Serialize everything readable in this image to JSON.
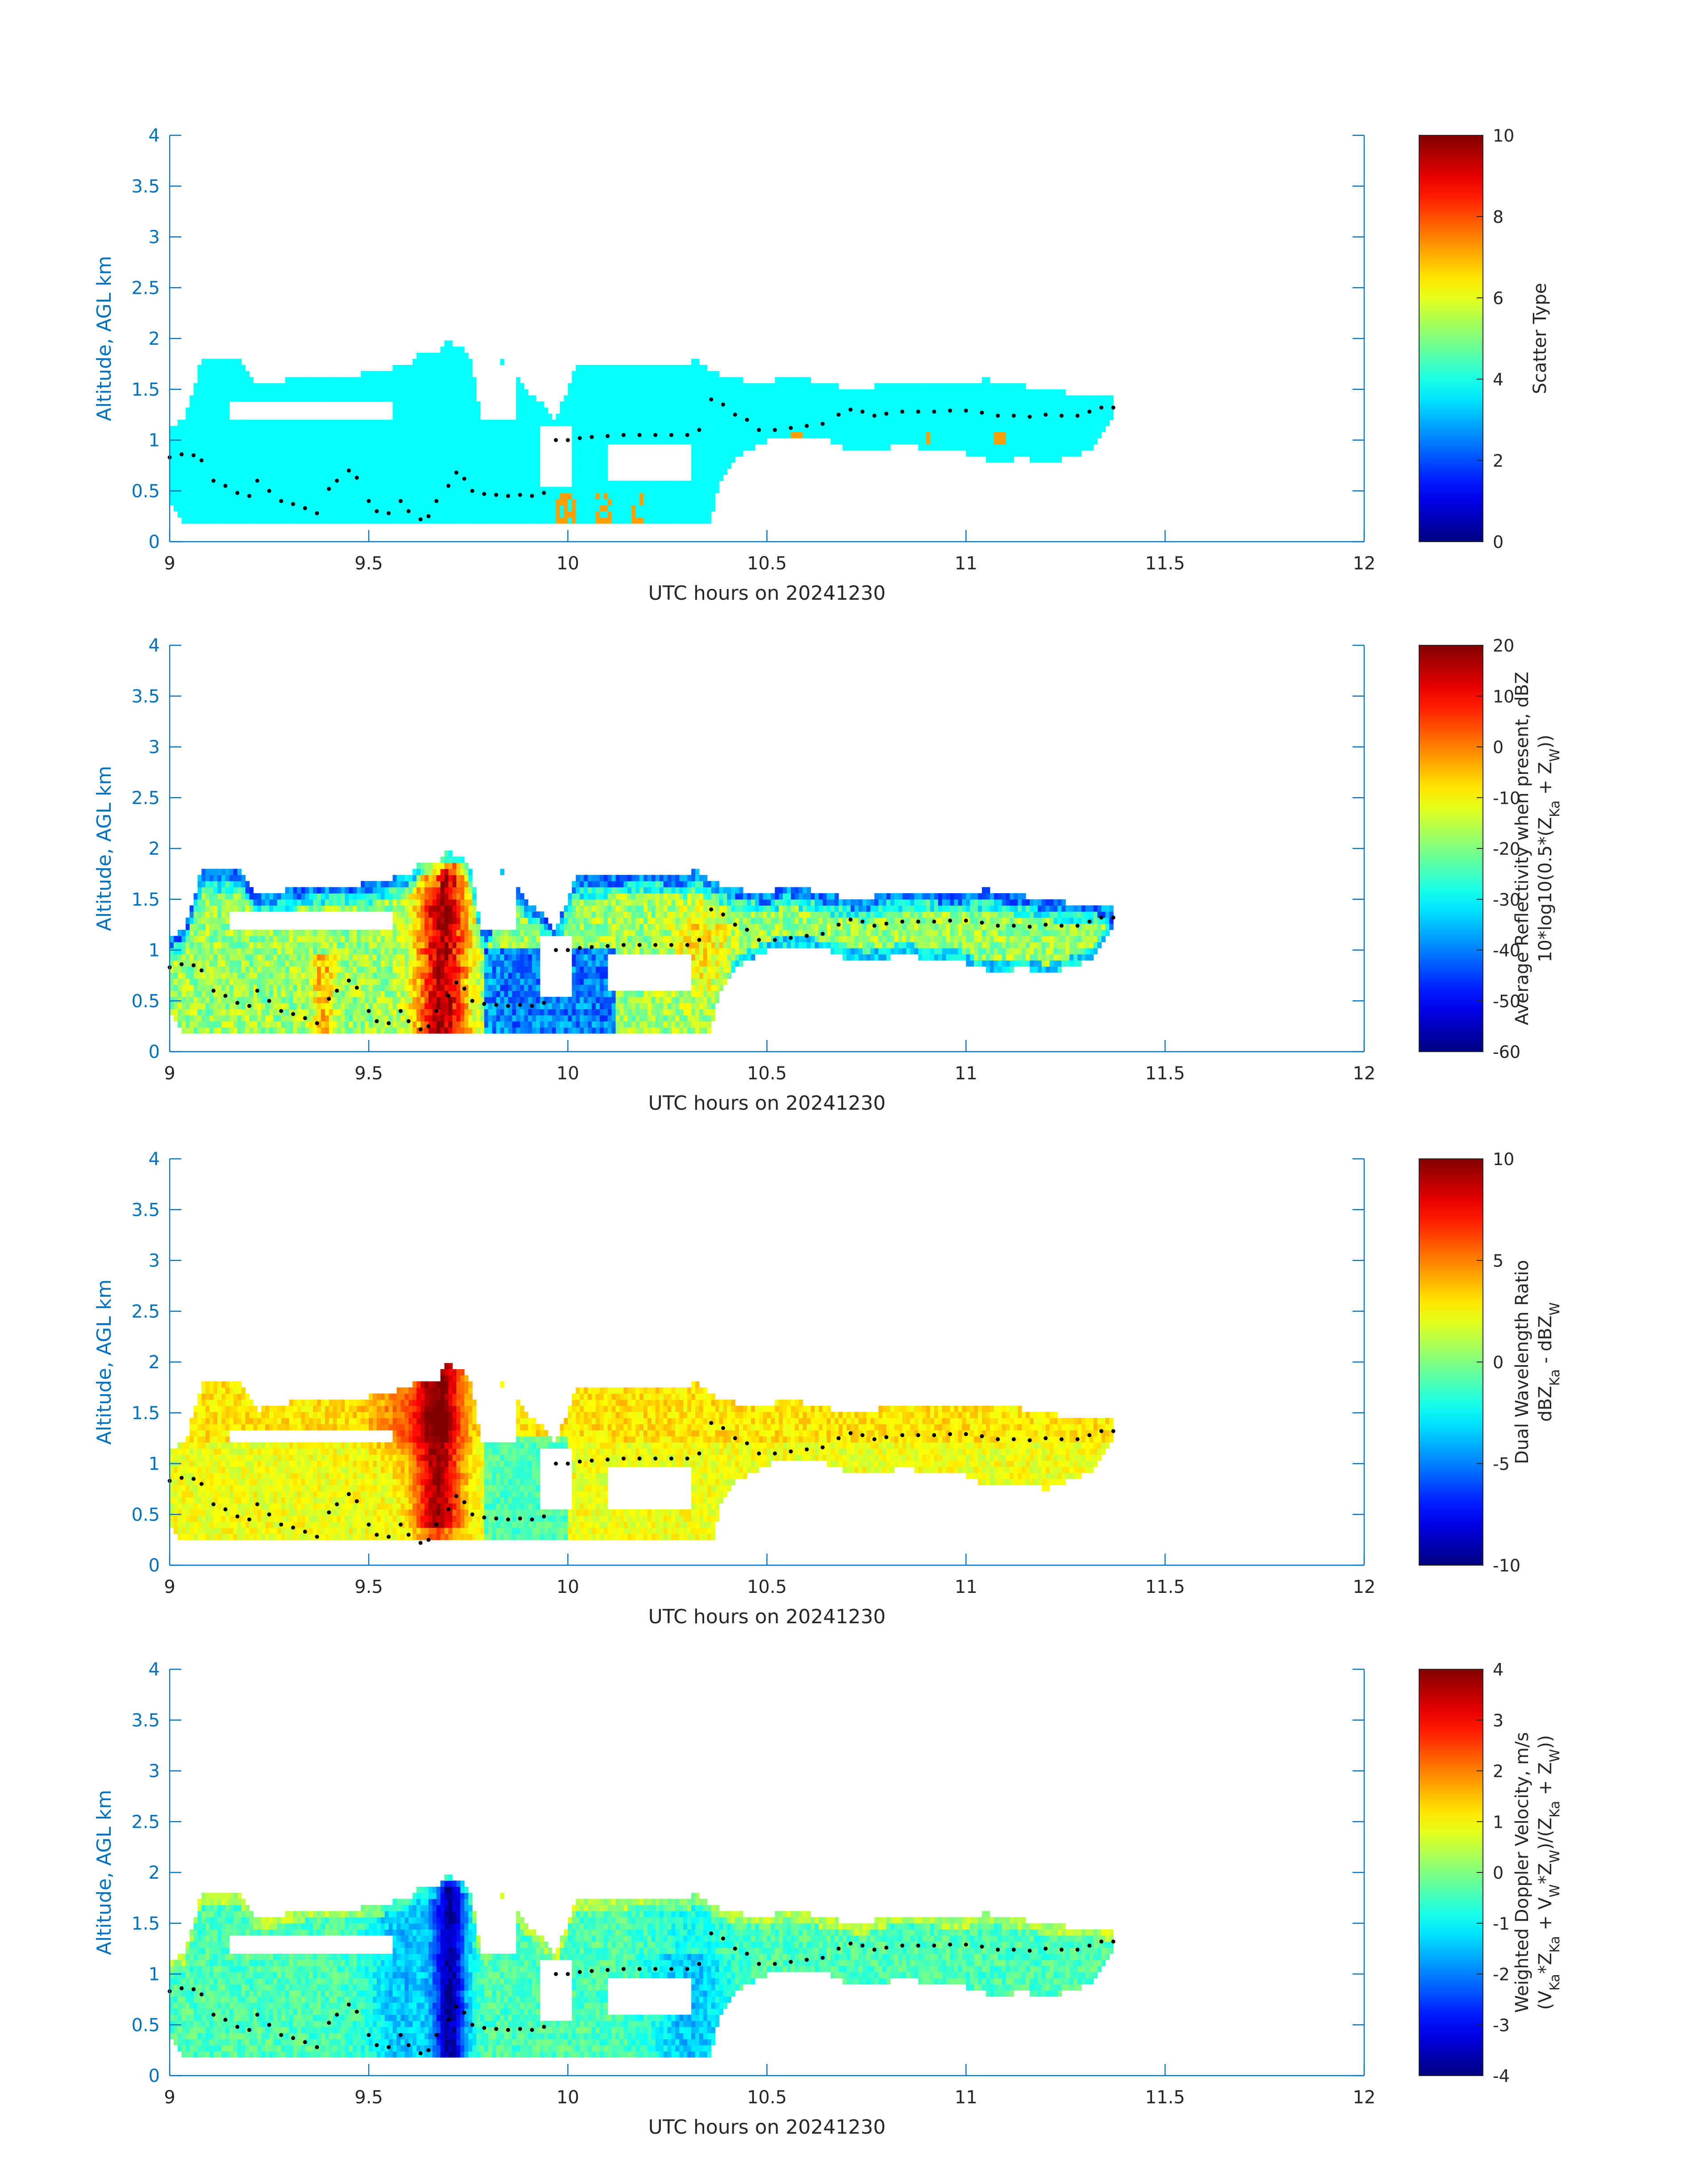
{
  "chart_data": [
    {
      "type": "heatmap",
      "xlabel": "UTC hours on 20241230",
      "ylabel": "Altitude, AGL km",
      "xlim": [
        9,
        12
      ],
      "ylim": [
        0,
        4
      ],
      "xticks": [
        "9",
        "9.5",
        "10",
        "10.5",
        "11",
        "11.5",
        "12"
      ],
      "yticks": [
        "0",
        "0.5",
        "1",
        "1.5",
        "2",
        "2.5",
        "3",
        "3.5",
        "4"
      ],
      "colorbar": {
        "label": [
          "Scatter Type"
        ],
        "clim": [
          0,
          10
        ],
        "ticks": [
          "0",
          "2",
          "4",
          "6",
          "8",
          "10"
        ]
      },
      "field": "scatter",
      "approx_extent": {
        "x": [
          9.0,
          11.37
        ],
        "y": [
          0.18,
          1.98
        ]
      }
    },
    {
      "type": "heatmap",
      "xlabel": "UTC hours on 20241230",
      "ylabel": "Altitude, AGL km",
      "xlim": [
        9,
        12
      ],
      "ylim": [
        0,
        4
      ],
      "xticks": [
        "9",
        "9.5",
        "10",
        "10.5",
        "11",
        "11.5",
        "12"
      ],
      "yticks": [
        "0",
        "0.5",
        "1",
        "1.5",
        "2",
        "2.5",
        "3",
        "3.5",
        "4"
      ],
      "colorbar": {
        "label": [
          "Average Reflectivity when present, dBZ",
          "10*log10(0.5*(Z_Ka + Z_W))"
        ],
        "clim": [
          -60,
          20
        ],
        "ticks": [
          "-60",
          "-50",
          "-40",
          "-30",
          "-20",
          "-10",
          "0",
          "10",
          "20"
        ]
      },
      "field": "reflectivity",
      "approx_extent": {
        "x": [
          9.0,
          11.37
        ],
        "y": [
          0.18,
          1.98
        ]
      }
    },
    {
      "type": "heatmap",
      "xlabel": "UTC hours on 20241230",
      "ylabel": "Altitude, AGL km",
      "xlim": [
        9,
        12
      ],
      "ylim": [
        0,
        4
      ],
      "xticks": [
        "9",
        "9.5",
        "10",
        "10.5",
        "11",
        "11.5",
        "12"
      ],
      "yticks": [
        "0",
        "0.5",
        "1",
        "1.5",
        "2",
        "2.5",
        "3",
        "3.5",
        "4"
      ],
      "colorbar": {
        "label": [
          "Dual Wavelength Ratio",
          "dBZ_Ka - dBZ_W"
        ],
        "clim": [
          -10,
          10
        ],
        "ticks": [
          "-10",
          "-5",
          "0",
          "5",
          "10"
        ]
      },
      "field": "dwr",
      "approx_extent": {
        "x": [
          9.0,
          11.37
        ],
        "y": [
          0.25,
          1.98
        ]
      }
    },
    {
      "type": "heatmap",
      "xlabel": "UTC hours on 20241230",
      "ylabel": "Altitude, AGL km",
      "xlim": [
        9,
        12
      ],
      "ylim": [
        0,
        4
      ],
      "xticks": [
        "9",
        "9.5",
        "10",
        "10.5",
        "11",
        "11.5",
        "12"
      ],
      "yticks": [
        "0",
        "0.5",
        "1",
        "1.5",
        "2",
        "2.5",
        "3",
        "3.5",
        "4"
      ],
      "colorbar": {
        "label": [
          "Weighted Doppler Velocity, m/s",
          "(V_Ka*Z_Ka + V_W*Z_W)/(Z_Ka + Z_W))"
        ],
        "clim": [
          -4,
          4
        ],
        "ticks": [
          "-4",
          "-3",
          "-2",
          "-1",
          "0",
          "1",
          "2",
          "3",
          "4"
        ]
      },
      "field": "velocity",
      "approx_extent": {
        "x": [
          9.0,
          11.37
        ],
        "y": [
          0.18,
          1.98
        ]
      }
    }
  ],
  "cloud_top_km": [
    [
      9.0,
      1.12
    ],
    [
      9.04,
      1.22
    ],
    [
      9.08,
      1.78
    ],
    [
      9.18,
      1.78
    ],
    [
      9.22,
      1.53
    ],
    [
      9.34,
      1.63
    ],
    [
      9.45,
      1.63
    ],
    [
      9.5,
      1.66
    ],
    [
      9.6,
      1.74
    ],
    [
      9.62,
      1.83
    ],
    [
      9.68,
      1.83
    ],
    [
      9.69,
      1.98
    ],
    [
      9.74,
      1.92
    ],
    [
      9.76,
      1.74
    ],
    [
      9.78,
      1.27
    ],
    [
      9.8,
      1.15
    ],
    [
      9.83,
      1.83
    ],
    [
      9.87,
      1.66
    ],
    [
      9.9,
      1.48
    ],
    [
      9.94,
      1.35
    ],
    [
      9.97,
      1.2
    ],
    [
      10.0,
      1.52
    ],
    [
      10.02,
      1.72
    ],
    [
      10.1,
      1.73
    ],
    [
      10.2,
      1.77
    ],
    [
      10.3,
      1.72
    ],
    [
      10.32,
      1.8
    ],
    [
      10.36,
      1.68
    ],
    [
      10.42,
      1.6
    ],
    [
      10.5,
      1.56
    ],
    [
      10.55,
      1.64
    ],
    [
      10.65,
      1.55
    ],
    [
      10.75,
      1.48
    ],
    [
      10.8,
      1.58
    ],
    [
      10.9,
      1.58
    ],
    [
      10.98,
      1.55
    ],
    [
      11.05,
      1.6
    ],
    [
      11.12,
      1.55
    ],
    [
      11.2,
      1.5
    ],
    [
      11.28,
      1.45
    ],
    [
      11.33,
      1.45
    ],
    [
      11.37,
      1.42
    ]
  ],
  "cloud_base_km": [
    [
      9.0,
      0.42
    ],
    [
      9.04,
      0.18
    ],
    [
      9.15,
      0.18
    ],
    [
      9.3,
      0.18
    ],
    [
      9.5,
      0.18
    ],
    [
      9.7,
      0.18
    ],
    [
      9.8,
      0.2
    ],
    [
      9.9,
      0.2
    ],
    [
      10.0,
      0.2
    ],
    [
      10.1,
      0.2
    ],
    [
      10.2,
      0.18
    ],
    [
      10.3,
      0.18
    ],
    [
      10.36,
      0.18
    ],
    [
      10.38,
      0.55
    ],
    [
      10.42,
      0.82
    ],
    [
      10.48,
      0.95
    ],
    [
      10.52,
      1.02
    ],
    [
      10.57,
      1.02
    ],
    [
      10.6,
      1.02
    ],
    [
      10.65,
      1.0
    ],
    [
      10.7,
      0.92
    ],
    [
      10.75,
      0.88
    ],
    [
      10.8,
      0.92
    ],
    [
      10.85,
      0.98
    ],
    [
      10.9,
      0.9
    ],
    [
      10.95,
      0.92
    ],
    [
      11.0,
      0.88
    ],
    [
      11.03,
      0.82
    ],
    [
      11.08,
      0.8
    ],
    [
      11.15,
      0.82
    ],
    [
      11.2,
      0.75
    ],
    [
      11.28,
      0.86
    ],
    [
      11.32,
      0.92
    ],
    [
      11.37,
      1.25
    ]
  ],
  "cloud_gaps_km": [
    [
      9.15,
      9.55,
      1.23,
      1.35
    ],
    [
      9.78,
      9.86,
      1.2,
      1.75
    ],
    [
      9.93,
      10.0,
      0.56,
      1.15
    ],
    [
      10.1,
      10.3,
      0.58,
      0.95
    ]
  ],
  "dotted_trace_km": [
    [
      9.0,
      0.83
    ],
    [
      9.03,
      0.86
    ],
    [
      9.06,
      0.85
    ],
    [
      9.08,
      0.8
    ],
    [
      9.11,
      0.6
    ],
    [
      9.14,
      0.55
    ],
    [
      9.17,
      0.48
    ],
    [
      9.2,
      0.45
    ],
    [
      9.22,
      0.6
    ],
    [
      9.25,
      0.5
    ],
    [
      9.28,
      0.4
    ],
    [
      9.31,
      0.37
    ],
    [
      9.34,
      0.33
    ],
    [
      9.37,
      0.28
    ],
    [
      9.4,
      0.52
    ],
    [
      9.42,
      0.6
    ],
    [
      9.45,
      0.7
    ],
    [
      9.47,
      0.63
    ],
    [
      9.5,
      0.4
    ],
    [
      9.52,
      0.3
    ],
    [
      9.55,
      0.28
    ],
    [
      9.58,
      0.4
    ],
    [
      9.6,
      0.3
    ],
    [
      9.63,
      0.22
    ],
    [
      9.65,
      0.25
    ],
    [
      9.67,
      0.4
    ],
    [
      9.7,
      0.55
    ],
    [
      9.72,
      0.68
    ],
    [
      9.74,
      0.62
    ],
    [
      9.76,
      0.5
    ],
    [
      9.79,
      0.47
    ],
    [
      9.82,
      0.46
    ],
    [
      9.85,
      0.45
    ],
    [
      9.88,
      0.46
    ],
    [
      9.91,
      0.45
    ],
    [
      9.94,
      0.48
    ],
    [
      9.97,
      1.0
    ],
    [
      10.0,
      1.0
    ],
    [
      10.03,
      1.02
    ],
    [
      10.06,
      1.03
    ],
    [
      10.1,
      1.04
    ],
    [
      10.14,
      1.05
    ],
    [
      10.18,
      1.05
    ],
    [
      10.22,
      1.05
    ],
    [
      10.26,
      1.05
    ],
    [
      10.3,
      1.05
    ],
    [
      10.33,
      1.1
    ],
    [
      10.36,
      1.4
    ],
    [
      10.39,
      1.35
    ],
    [
      10.42,
      1.25
    ],
    [
      10.45,
      1.2
    ],
    [
      10.48,
      1.1
    ],
    [
      10.52,
      1.1
    ],
    [
      10.56,
      1.12
    ],
    [
      10.6,
      1.14
    ],
    [
      10.64,
      1.16
    ],
    [
      10.68,
      1.25
    ],
    [
      10.71,
      1.3
    ],
    [
      10.74,
      1.28
    ],
    [
      10.77,
      1.24
    ],
    [
      10.8,
      1.26
    ],
    [
      10.84,
      1.28
    ],
    [
      10.88,
      1.28
    ],
    [
      10.92,
      1.28
    ],
    [
      10.96,
      1.29
    ],
    [
      11.0,
      1.29
    ],
    [
      11.04,
      1.27
    ],
    [
      11.08,
      1.24
    ],
    [
      11.12,
      1.24
    ],
    [
      11.16,
      1.23
    ],
    [
      11.2,
      1.25
    ],
    [
      11.24,
      1.24
    ],
    [
      11.28,
      1.24
    ],
    [
      11.31,
      1.28
    ],
    [
      11.34,
      1.32
    ],
    [
      11.37,
      1.32
    ]
  ]
}
